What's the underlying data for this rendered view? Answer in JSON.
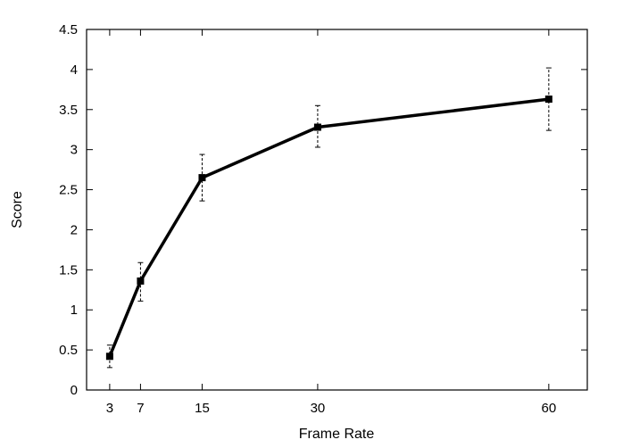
{
  "chart_data": {
    "type": "line",
    "title": "",
    "xlabel": "Frame Rate",
    "ylabel": "Score",
    "xlim": [
      0,
      65
    ],
    "ylim": [
      0,
      4.5
    ],
    "xticks": [
      3,
      7,
      15,
      30,
      60
    ],
    "yticks": [
      0,
      0.5,
      1,
      1.5,
      2,
      2.5,
      3,
      3.5,
      4,
      4.5
    ],
    "ytick_labels": [
      "0",
      "0.5",
      "1",
      "1.5",
      "2",
      "2.5",
      "3",
      "3.5",
      "4",
      "4.5"
    ],
    "grid": false,
    "legend": "none",
    "series": [
      {
        "x": [
          3,
          7,
          15,
          30,
          60
        ],
        "y": [
          0.42,
          1.36,
          2.65,
          3.28,
          3.63
        ],
        "error_low": [
          0.28,
          1.11,
          2.36,
          3.03,
          3.24
        ],
        "error_high": [
          0.56,
          1.59,
          2.94,
          3.55,
          4.02
        ],
        "color": "#000000",
        "marker": "square",
        "error_style": "dashed"
      }
    ]
  }
}
